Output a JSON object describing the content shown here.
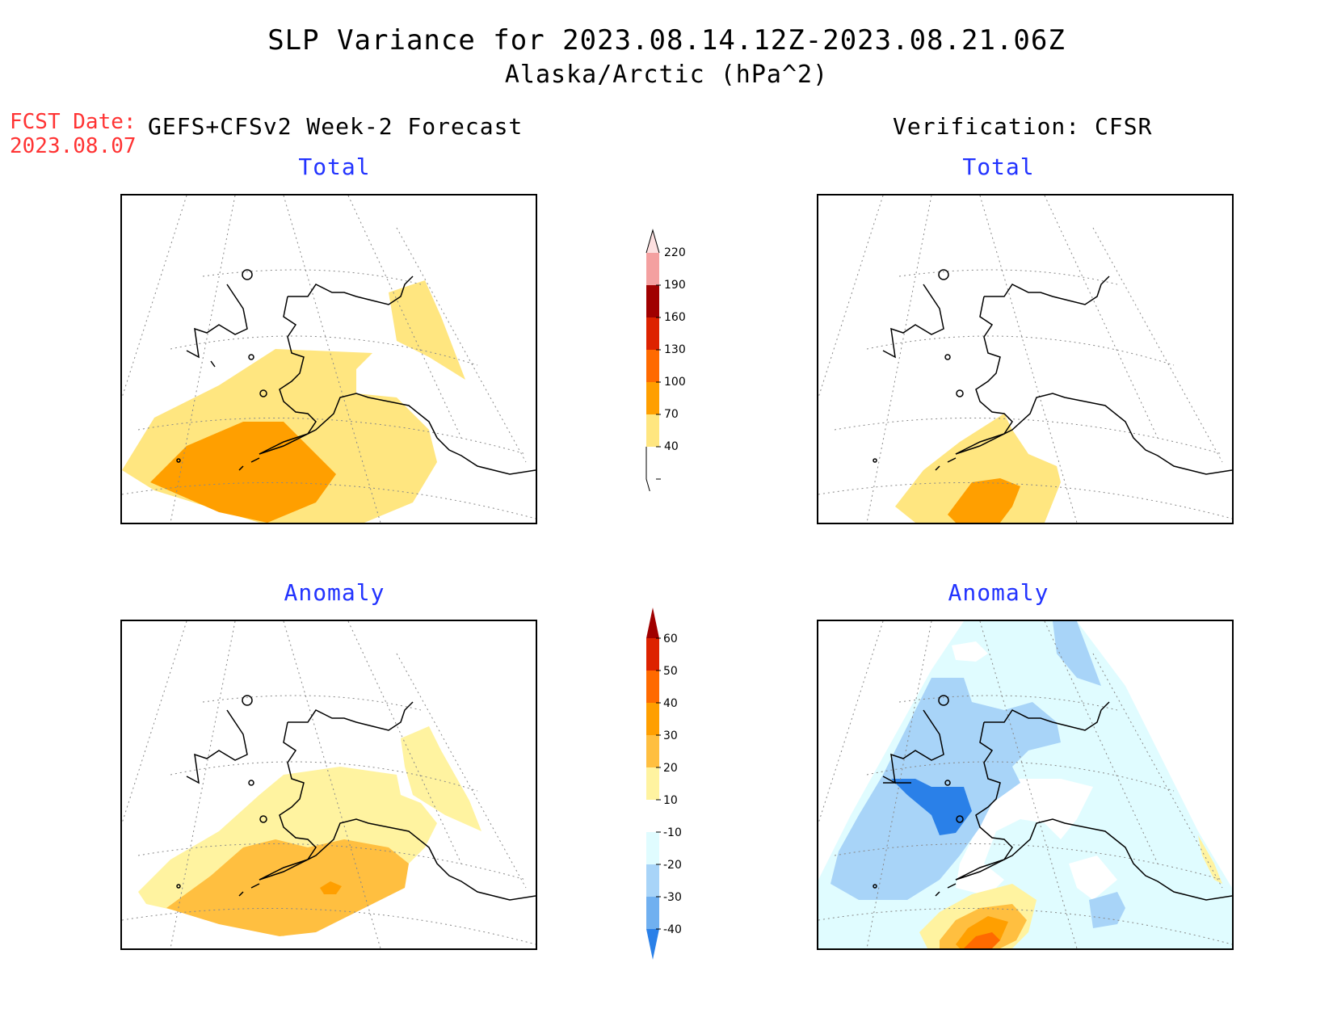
{
  "header": {
    "title": "SLP Variance for 2023.08.14.12Z-2023.08.21.06Z",
    "subtitle": "Alaska/Arctic (hPa^2)"
  },
  "fcst": {
    "line1": "FCST Date:",
    "line2": "2023.08.07"
  },
  "columns": {
    "left_header": "GEFS+CFSv2 Week-2 Forecast",
    "right_header": "Verification: CFSR"
  },
  "panels": {
    "forecast_total_title": "Total",
    "verification_total_title": "Total",
    "forecast_anomaly_title": "Anomaly",
    "verification_anomaly_title": "Anomaly"
  },
  "colorbars": {
    "total": {
      "labels": [
        "220",
        "190",
        "160",
        "130",
        "100",
        "70",
        "40"
      ],
      "colors": [
        "#fde0e0",
        "#f4a0a0",
        "#a00000",
        "#dd2200",
        "#ff6a00",
        "#ff9f00",
        "#ffe680"
      ]
    },
    "anomaly": {
      "labels": [
        "60",
        "50",
        "40",
        "30",
        "20",
        "10",
        "-10",
        "-20",
        "-30",
        "-40"
      ],
      "colors": [
        "#a00000",
        "#dd2200",
        "#ff6a00",
        "#ff9f00",
        "#ffbf40",
        "#fff3a0",
        "#ffffff",
        "#e0fcff",
        "#a8d4f8",
        "#70b0f0",
        "#2a80e8"
      ]
    }
  },
  "colors": {
    "title_blue": "#2233ff",
    "fcst_red": "#ff3333"
  }
}
